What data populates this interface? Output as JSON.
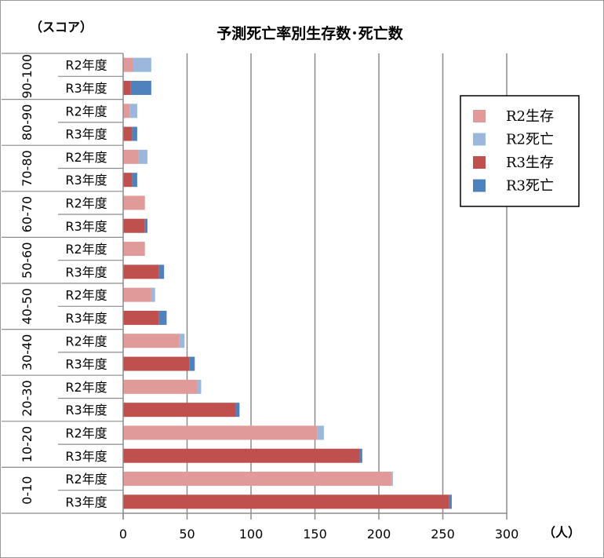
{
  "chart_data": {
    "type": "bar",
    "orientation": "horizontal",
    "stacked": true,
    "title": "予測死亡率別生存数･死亡数",
    "y_unit_label": "（スコア）",
    "x_unit_label": "（人）",
    "xlim": [
      0,
      300
    ],
    "xticks": [
      0,
      50,
      100,
      150,
      200,
      250,
      300
    ],
    "grid": true,
    "legend_position": "right",
    "legend": [
      {
        "label": "R2生存",
        "color": "#e09a9a"
      },
      {
        "label": "R2死亡",
        "color": "#9bb8dc"
      },
      {
        "label": "R3生存",
        "color": "#c0504d"
      },
      {
        "label": "R3死亡",
        "color": "#4f81bd"
      }
    ],
    "groups": [
      {
        "label": "90-100",
        "rows": [
          {
            "label": "R2年度",
            "year": "R2",
            "survive": 8,
            "death": 14
          },
          {
            "label": "R3年度",
            "year": "R3",
            "survive": 6,
            "death": 16
          }
        ]
      },
      {
        "label": "80-90",
        "rows": [
          {
            "label": "R2年度",
            "year": "R2",
            "survive": 5,
            "death": 6
          },
          {
            "label": "R3年度",
            "year": "R3",
            "survive": 7,
            "death": 4
          }
        ]
      },
      {
        "label": "70-80",
        "rows": [
          {
            "label": "R2年度",
            "year": "R2",
            "survive": 12,
            "death": 7
          },
          {
            "label": "R3年度",
            "year": "R3",
            "survive": 7,
            "death": 4
          }
        ]
      },
      {
        "label": "60-70",
        "rows": [
          {
            "label": "R2年度",
            "year": "R2",
            "survive": 17,
            "death": 0
          },
          {
            "label": "R3年度",
            "year": "R3",
            "survive": 17,
            "death": 2
          }
        ]
      },
      {
        "label": "50-60",
        "rows": [
          {
            "label": "R2年度",
            "year": "R2",
            "survive": 17,
            "death": 0
          },
          {
            "label": "R3年度",
            "year": "R3",
            "survive": 28,
            "death": 4
          }
        ]
      },
      {
        "label": "40-50",
        "rows": [
          {
            "label": "R2年度",
            "year": "R2",
            "survive": 22,
            "death": 3
          },
          {
            "label": "R3年度",
            "year": "R3",
            "survive": 28,
            "death": 6
          }
        ]
      },
      {
        "label": "30-40",
        "rows": [
          {
            "label": "R2年度",
            "year": "R2",
            "survive": 44,
            "death": 4
          },
          {
            "label": "R3年度",
            "year": "R3",
            "survive": 52,
            "death": 4
          }
        ]
      },
      {
        "label": "20-30",
        "rows": [
          {
            "label": "R2年度",
            "year": "R2",
            "survive": 58,
            "death": 3
          },
          {
            "label": "R3年度",
            "year": "R3",
            "survive": 88,
            "death": 3
          }
        ]
      },
      {
        "label": "10-20",
        "rows": [
          {
            "label": "R2年度",
            "year": "R2",
            "survive": 152,
            "death": 5
          },
          {
            "label": "R3年度",
            "year": "R3",
            "survive": 185,
            "death": 2
          }
        ]
      },
      {
        "label": "0-10",
        "rows": [
          {
            "label": "R2年度",
            "year": "R2",
            "survive": 210,
            "death": 1
          },
          {
            "label": "R3年度",
            "year": "R3",
            "survive": 255,
            "death": 2
          }
        ]
      }
    ]
  }
}
